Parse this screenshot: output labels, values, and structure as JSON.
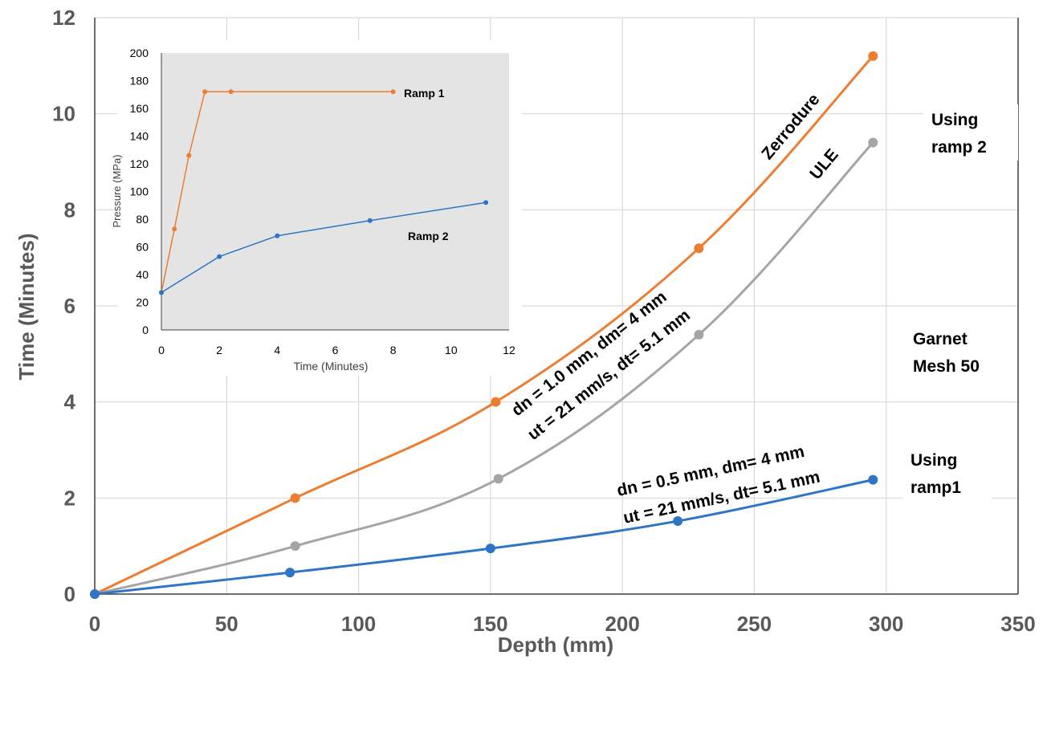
{
  "chart_data": [
    {
      "type": "line",
      "title": "",
      "xlabel": "Depth (mm)",
      "ylabel": "Time (Minutes)",
      "xlim": [
        0,
        350
      ],
      "ylim": [
        0,
        12
      ],
      "x_ticks": [
        0,
        50,
        100,
        150,
        200,
        250,
        300,
        350
      ],
      "y_ticks": [
        0,
        2,
        4,
        6,
        8,
        10,
        12
      ],
      "grid": true,
      "series": [
        {
          "name": "Zerrodure",
          "color": "#ED7D31",
          "x": [
            0,
            76,
            152,
            229,
            295
          ],
          "y": [
            0,
            2.0,
            4.0,
            7.2,
            11.2
          ]
        },
        {
          "name": "ULE",
          "color": "#A5A5A5",
          "x": [
            0,
            76,
            153,
            229,
            295
          ],
          "y": [
            0,
            1.0,
            2.4,
            5.4,
            9.4
          ]
        },
        {
          "name": "ramp1",
          "color": "#2E75C6",
          "x": [
            0,
            74,
            150,
            221,
            295
          ],
          "y": [
            0,
            0.45,
            0.95,
            1.52,
            2.38
          ]
        }
      ],
      "annotations": {
        "zerrodure": "Zerrodure",
        "ule": "ULE",
        "params_ramp2_line1": "dn = 1.0 mm, dm= 4 mm",
        "params_ramp2_line2": "ut = 21 mm/s, dt= 5.1 mm",
        "params_ramp1_line1": "dn = 0.5 mm, dm= 4 mm",
        "params_ramp1_line2": "ut = 21 mm/s, dt= 5.1 mm",
        "using_ramp2_line1": "Using",
        "using_ramp2_line2": "ramp 2",
        "garnet_line1": "Garnet",
        "garnet_line2": "Mesh 50",
        "using_ramp1_line1": "Using",
        "using_ramp1_line2": "ramp1"
      }
    },
    {
      "type": "line",
      "title": "",
      "xlabel": "Time (Minutes)",
      "ylabel": "Pressure (MPa)",
      "xlim": [
        0,
        12
      ],
      "ylim": [
        0,
        200
      ],
      "x_ticks": [
        0,
        2,
        4,
        6,
        8,
        10,
        12
      ],
      "y_ticks": [
        0,
        20,
        40,
        60,
        80,
        100,
        120,
        140,
        160,
        180,
        200
      ],
      "grid": false,
      "series": [
        {
          "name": "Ramp 1",
          "color": "#ED7D31",
          "x": [
            0,
            0.45,
            0.95,
            1.5,
            2.4,
            8.0
          ],
          "y": [
            27,
            73,
            126,
            172,
            172,
            172
          ]
        },
        {
          "name": "Ramp 2",
          "color": "#2E75C6",
          "x": [
            0,
            2.0,
            4.0,
            7.2,
            11.2
          ],
          "y": [
            27,
            53,
            68,
            79,
            92
          ]
        }
      ]
    }
  ]
}
